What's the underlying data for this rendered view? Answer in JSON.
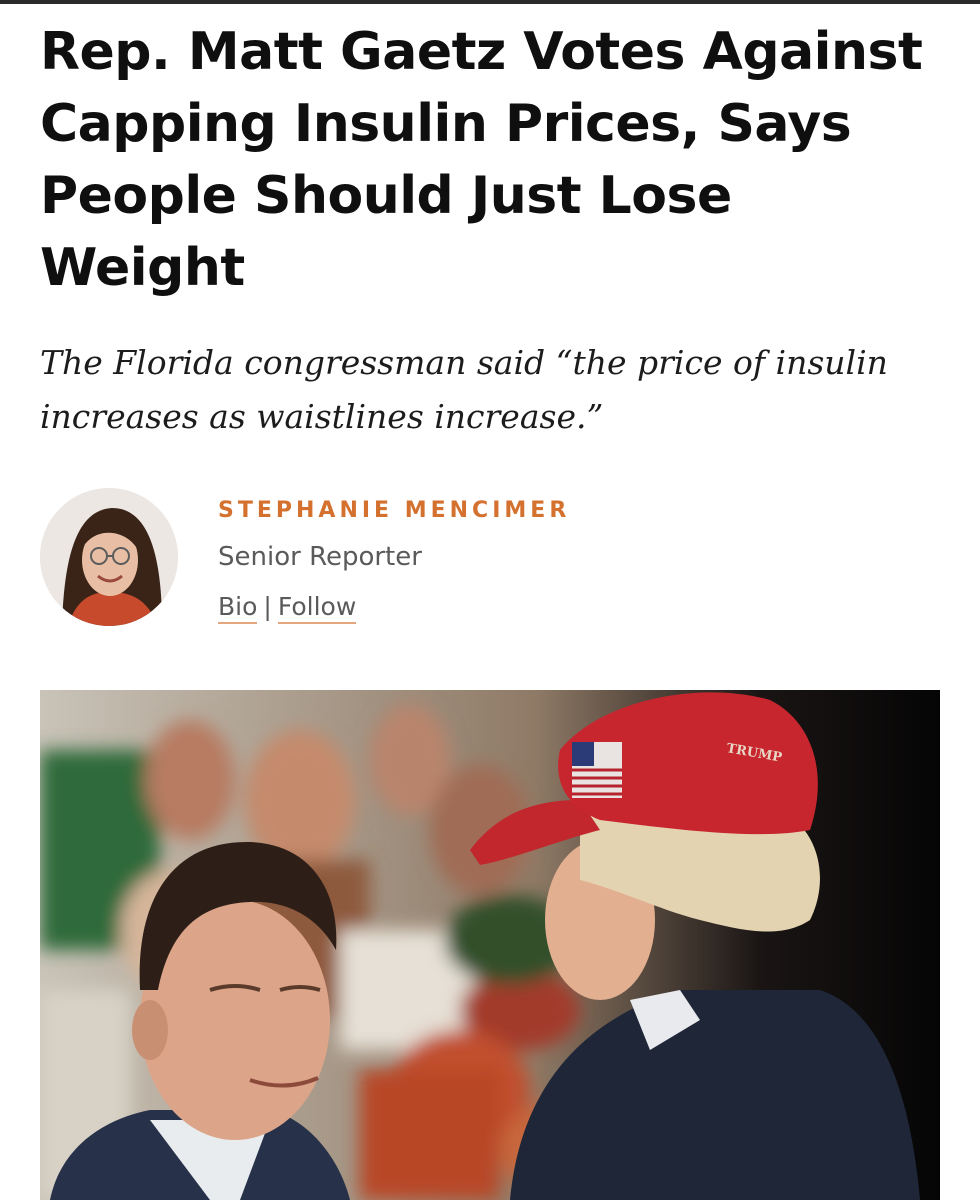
{
  "article": {
    "headline": "Rep. Matt Gaetz Votes Against Capping Insulin Prices, Says People Should Just Lose Weight",
    "dek": "The Florida congressman said “the price of insulin increases as waistlines increase.”"
  },
  "author": {
    "name": "STEPHANIE MENCIMER",
    "role": "Senior Reporter",
    "bio_link": "Bio",
    "separator": "|",
    "follow_link": "Follow"
  },
  "photo": {
    "cap_text": "TRUMP"
  },
  "colors": {
    "accent": "#d4712e",
    "link_underline": "#e3a77f",
    "text": "#0f0f0f",
    "muted": "#5a5a5a"
  }
}
